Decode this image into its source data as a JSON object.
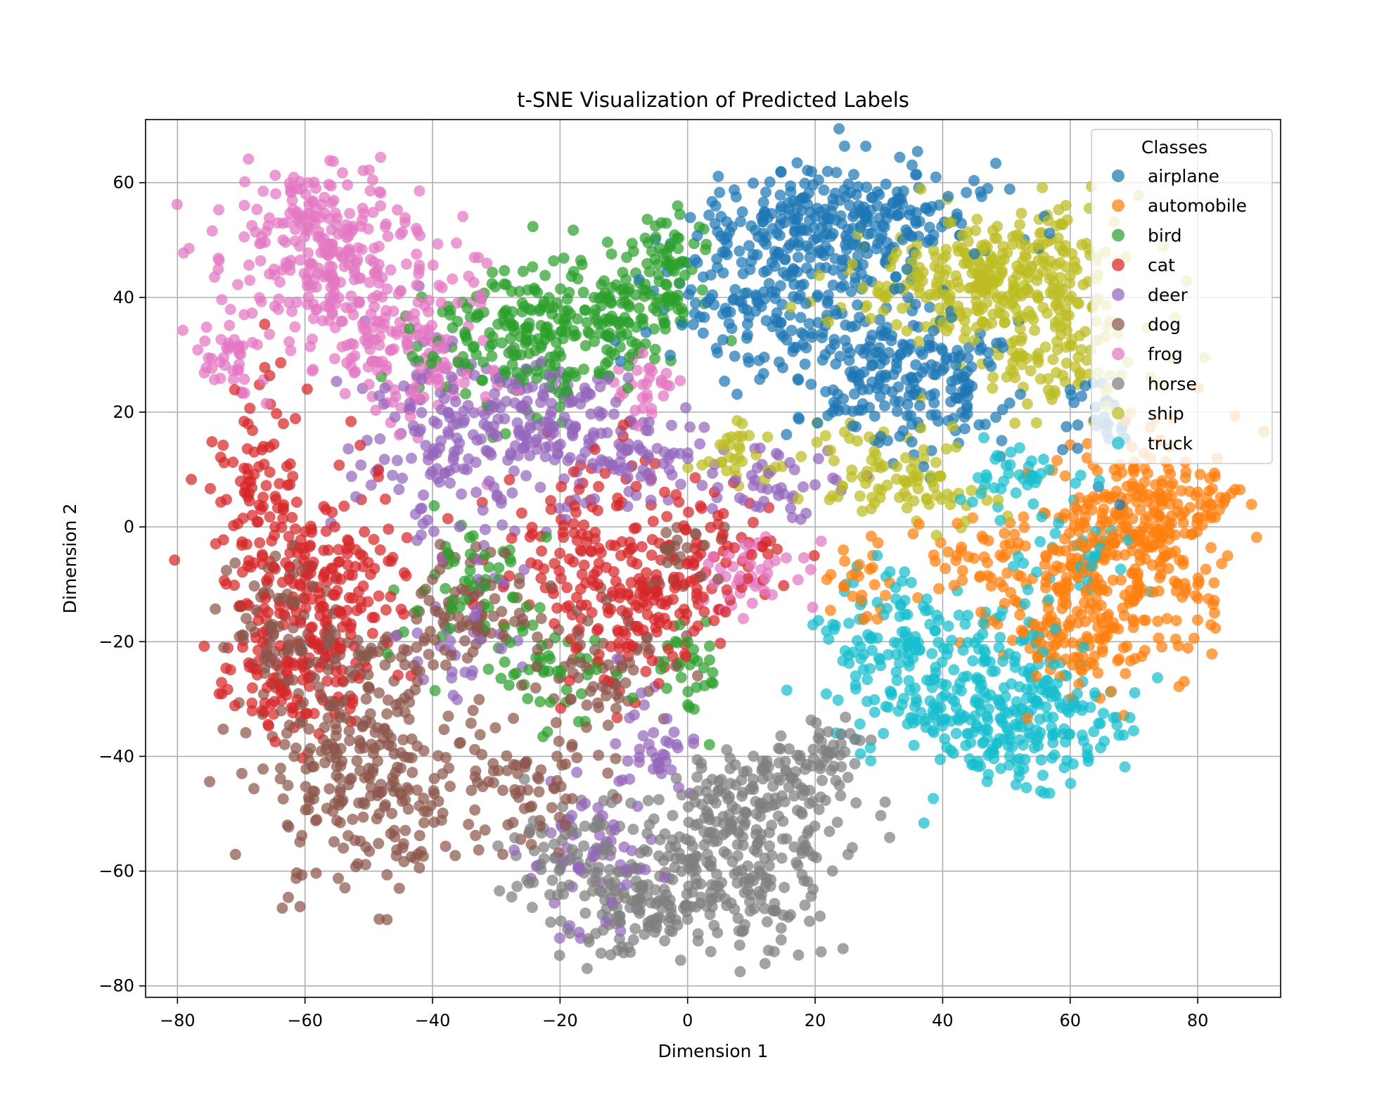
{
  "chart_data": {
    "type": "scatter",
    "title": "t-SNE Visualization of Predicted Labels",
    "xlabel": "Dimension 1",
    "ylabel": "Dimension 2",
    "xlim": [
      -85,
      93
    ],
    "ylim": [
      -82,
      71
    ],
    "xticks": [
      -80,
      -60,
      -40,
      -20,
      0,
      20,
      40,
      60,
      80
    ],
    "yticks": [
      -80,
      -60,
      -40,
      -20,
      0,
      20,
      40,
      60
    ],
    "xtick_labels": [
      "−80",
      "−60",
      "−40",
      "−20",
      "0",
      "20",
      "40",
      "60",
      "80"
    ],
    "ytick_labels": [
      "−80",
      "−60",
      "−40",
      "−20",
      "0",
      "20",
      "40",
      "60"
    ],
    "grid": true,
    "legend": {
      "title": "Classes",
      "position": "top-right"
    },
    "series": [
      {
        "name": "airplane",
        "color": "#1f77b4",
        "clusters": [
          {
            "center": [
              20,
              52
            ],
            "spread": [
              9,
              6
            ],
            "count": 190
          },
          {
            "center": [
              33,
              55
            ],
            "spread": [
              9,
              4
            ],
            "count": 110
          },
          {
            "center": [
              38,
              25
            ],
            "spread": [
              7,
              6
            ],
            "count": 150
          },
          {
            "center": [
              10,
              38
            ],
            "spread": [
              8,
              8
            ],
            "count": 130
          },
          {
            "center": [
              25,
              30
            ],
            "spread": [
              7,
              6
            ],
            "count": 90
          },
          {
            "center": [
              65,
              17
            ],
            "spread": [
              3,
              5
            ],
            "count": 30
          }
        ]
      },
      {
        "name": "automobile",
        "color": "#ff7f0e",
        "clusters": [
          {
            "center": [
              68,
              -5
            ],
            "spread": [
              9,
              9
            ],
            "count": 260
          },
          {
            "center": [
              75,
              5
            ],
            "spread": [
              6,
              6
            ],
            "count": 120
          },
          {
            "center": [
              60,
              -20
            ],
            "spread": [
              6,
              5
            ],
            "count": 100
          },
          {
            "center": [
              48,
              -5
            ],
            "spread": [
              6,
              5
            ],
            "count": 60
          },
          {
            "center": [
              27,
              -10
            ],
            "spread": [
              3,
              4
            ],
            "count": 25
          }
        ]
      },
      {
        "name": "bird",
        "color": "#2ca02c",
        "clusters": [
          {
            "center": [
              -25,
              33
            ],
            "spread": [
              9,
              6
            ],
            "count": 210
          },
          {
            "center": [
              -10,
              38
            ],
            "spread": [
              7,
              5
            ],
            "count": 110
          },
          {
            "center": [
              -3,
              48
            ],
            "spread": [
              3,
              4
            ],
            "count": 45
          },
          {
            "center": [
              -35,
              -10
            ],
            "spread": [
              7,
              7
            ],
            "count": 50
          },
          {
            "center": [
              -20,
              -25
            ],
            "spread": [
              5,
              5
            ],
            "count": 45
          },
          {
            "center": [
              0,
              -25
            ],
            "spread": [
              3,
              5
            ],
            "count": 30
          }
        ]
      },
      {
        "name": "cat",
        "color": "#d62728",
        "clusters": [
          {
            "center": [
              -58,
              -10
            ],
            "spread": [
              7,
              9
            ],
            "count": 210
          },
          {
            "center": [
              -68,
              5
            ],
            "spread": [
              4,
              10
            ],
            "count": 80
          },
          {
            "center": [
              -63,
              -28
            ],
            "spread": [
              5,
              5
            ],
            "count": 80
          },
          {
            "center": [
              -15,
              -5
            ],
            "spread": [
              6,
              10
            ],
            "count": 150
          },
          {
            "center": [
              -5,
              -15
            ],
            "spread": [
              5,
              6
            ],
            "count": 90
          },
          {
            "center": [
              5,
              -5
            ],
            "spread": [
              5,
              6
            ],
            "count": 60
          }
        ]
      },
      {
        "name": "deer",
        "color": "#9467bd",
        "clusters": [
          {
            "center": [
              -35,
              15
            ],
            "spread": [
              8,
              9
            ],
            "count": 190
          },
          {
            "center": [
              -20,
              18
            ],
            "spread": [
              6,
              6
            ],
            "count": 90
          },
          {
            "center": [
              -8,
              12
            ],
            "spread": [
              5,
              4
            ],
            "count": 60
          },
          {
            "center": [
              15,
              8
            ],
            "spread": [
              5,
              4
            ],
            "count": 45
          },
          {
            "center": [
              -5,
              -40
            ],
            "spread": [
              4,
              5
            ],
            "count": 40
          },
          {
            "center": [
              -15,
              -58
            ],
            "spread": [
              5,
              7
            ],
            "count": 55
          },
          {
            "center": [
              -35,
              -20
            ],
            "spread": [
              5,
              5
            ],
            "count": 30
          }
        ]
      },
      {
        "name": "dog",
        "color": "#8c564b",
        "clusters": [
          {
            "center": [
              -50,
              -45
            ],
            "spread": [
              8,
              8
            ],
            "count": 230
          },
          {
            "center": [
              -55,
              -25
            ],
            "spread": [
              8,
              6
            ],
            "count": 120
          },
          {
            "center": [
              -65,
              -15
            ],
            "spread": [
              4,
              6
            ],
            "count": 60
          },
          {
            "center": [
              -35,
              -15
            ],
            "spread": [
              6,
              6
            ],
            "count": 80
          },
          {
            "center": [
              -25,
              -45
            ],
            "spread": [
              5,
              5
            ],
            "count": 60
          },
          {
            "center": [
              -12,
              -25
            ],
            "spread": [
              5,
              7
            ],
            "count": 70
          },
          {
            "center": [
              0,
              -5
            ],
            "spread": [
              3,
              4
            ],
            "count": 25
          }
        ]
      },
      {
        "name": "frog",
        "color": "#e377c2",
        "clusters": [
          {
            "center": [
              -55,
              45
            ],
            "spread": [
              9,
              8
            ],
            "count": 250
          },
          {
            "center": [
              -42,
              30
            ],
            "spread": [
              7,
              7
            ],
            "count": 110
          },
          {
            "center": [
              -72,
              30
            ],
            "spread": [
              3,
              4
            ],
            "count": 40
          },
          {
            "center": [
              -60,
              55
            ],
            "spread": [
              5,
              4
            ],
            "count": 60
          },
          {
            "center": [
              -5,
              25
            ],
            "spread": [
              3,
              3
            ],
            "count": 30
          },
          {
            "center": [
              10,
              -8
            ],
            "spread": [
              4,
              3
            ],
            "count": 45
          }
        ]
      },
      {
        "name": "horse",
        "color": "#7f7f7f",
        "clusters": [
          {
            "center": [
              5,
              -60
            ],
            "spread": [
              9,
              8
            ],
            "count": 260
          },
          {
            "center": [
              -10,
              -65
            ],
            "spread": [
              6,
              5
            ],
            "count": 110
          },
          {
            "center": [
              12,
              -45
            ],
            "spread": [
              6,
              5
            ],
            "count": 90
          },
          {
            "center": [
              -20,
              -55
            ],
            "spread": [
              5,
              4
            ],
            "count": 50
          },
          {
            "center": [
              22,
              -40
            ],
            "spread": [
              5,
              4
            ],
            "count": 40
          }
        ]
      },
      {
        "name": "ship",
        "color": "#bcbd22",
        "clusters": [
          {
            "center": [
              52,
              45
            ],
            "spread": [
              8,
              6
            ],
            "count": 220
          },
          {
            "center": [
              40,
              40
            ],
            "spread": [
              8,
              5
            ],
            "count": 110
          },
          {
            "center": [
              58,
              30
            ],
            "spread": [
              7,
              6
            ],
            "count": 90
          },
          {
            "center": [
              30,
              10
            ],
            "spread": [
              6,
              4
            ],
            "count": 70
          },
          {
            "center": [
              8,
              13
            ],
            "spread": [
              3,
              3
            ],
            "count": 30
          },
          {
            "center": [
              40,
              5
            ],
            "spread": [
              4,
              3
            ],
            "count": 25
          }
        ]
      },
      {
        "name": "truck",
        "color": "#17becf",
        "clusters": [
          {
            "center": [
              45,
              -30
            ],
            "spread": [
              9,
              7
            ],
            "count": 230
          },
          {
            "center": [
              58,
              -35
            ],
            "spread": [
              6,
              5
            ],
            "count": 100
          },
          {
            "center": [
              33,
              -20
            ],
            "spread": [
              6,
              6
            ],
            "count": 100
          },
          {
            "center": [
              52,
              8
            ],
            "spread": [
              5,
              3
            ],
            "count": 40
          },
          {
            "center": [
              62,
              -5
            ],
            "spread": [
              5,
              4
            ],
            "count": 30
          }
        ]
      }
    ]
  }
}
